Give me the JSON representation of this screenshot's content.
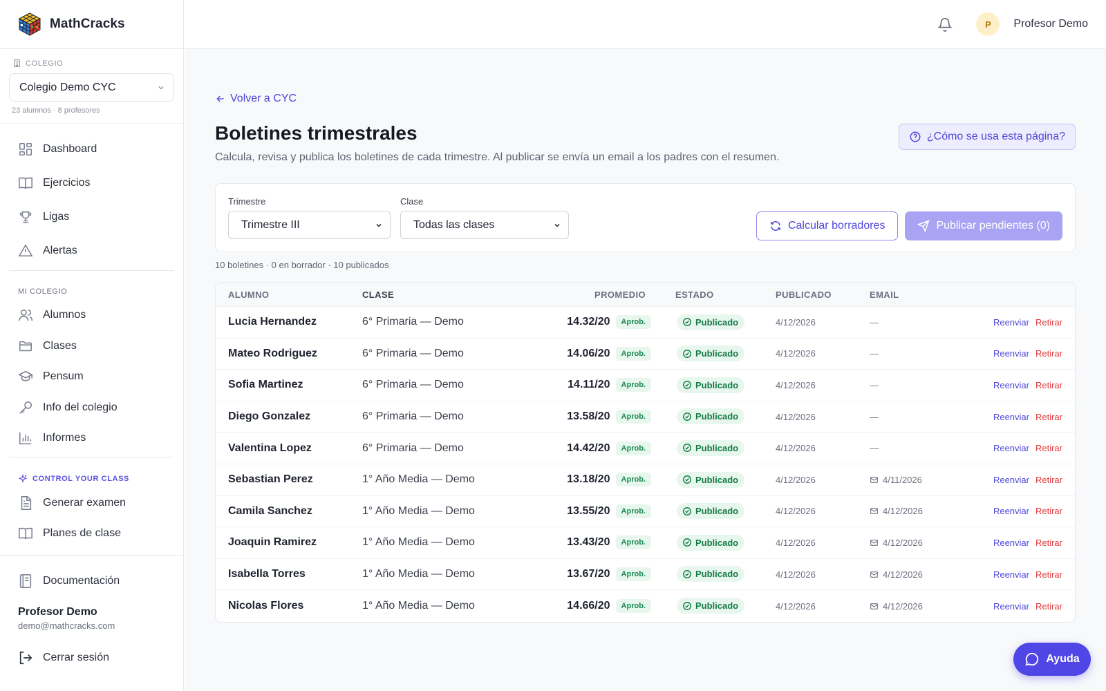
{
  "app": {
    "name": "MathCracks"
  },
  "school": {
    "label": "COLEGIO",
    "selected": "Colegio Demo CYC",
    "meta": "23 alumnos · 8 profesores"
  },
  "nav": {
    "main": [
      {
        "label": "Dashboard",
        "icon": "dashboard-icon"
      },
      {
        "label": "Ejercicios",
        "icon": "book-icon"
      },
      {
        "label": "Ligas",
        "icon": "trophy-icon"
      },
      {
        "label": "Alertas",
        "icon": "alert-icon"
      }
    ],
    "section_mi_colegio": "MI COLEGIO",
    "colegio": [
      {
        "label": "Alumnos",
        "icon": "users-icon"
      },
      {
        "label": "Clases",
        "icon": "folder-icon"
      },
      {
        "label": "Pensum",
        "icon": "graduation-cap-icon"
      },
      {
        "label": "Info del colegio",
        "icon": "key-icon"
      },
      {
        "label": "Informes",
        "icon": "bar-chart-icon"
      }
    ],
    "section_control": "CONTROL YOUR CLASS",
    "control": [
      {
        "label": "Generar examen",
        "icon": "document-icon"
      },
      {
        "label": "Planes de clase",
        "icon": "book-icon"
      }
    ],
    "docs": "Documentación",
    "logout": "Cerrar sesión"
  },
  "user": {
    "name": "Profesor Demo",
    "email": "demo@mathcracks.com",
    "initial": "P"
  },
  "page": {
    "back": "Volver a CYC",
    "title": "Boletines trimestrales",
    "subtitle": "Calcula, revisa y publica los boletines de cada trimestre. Al publicar se envía un email a los padres con el resumen.",
    "help": "¿Cómo se usa esta página?"
  },
  "filters": {
    "trimestre_label": "Trimestre",
    "trimestre_value": "Trimestre III",
    "clase_label": "Clase",
    "clase_value": "Todas las clases",
    "calc_button": "Calcular borradores",
    "publish_button": "Publicar pendientes (0)"
  },
  "summary": "10 boletines · 0 en borrador · 10 publicados",
  "table": {
    "headers": [
      "ALUMNO",
      "CLASE",
      "PROMEDIO",
      "ESTADO",
      "PUBLICADO",
      "EMAIL"
    ],
    "rows": [
      {
        "alumno": "Lucia Hernandez",
        "clase": "6° Primaria — Demo",
        "promedio": "14.32/20",
        "nota": "Aprob.",
        "estado": "Publicado",
        "publicado": "4/12/2026",
        "email": "—",
        "email_sent": false
      },
      {
        "alumno": "Mateo Rodriguez",
        "clase": "6° Primaria — Demo",
        "promedio": "14.06/20",
        "nota": "Aprob.",
        "estado": "Publicado",
        "publicado": "4/12/2026",
        "email": "—",
        "email_sent": false
      },
      {
        "alumno": "Sofia Martinez",
        "clase": "6° Primaria — Demo",
        "promedio": "14.11/20",
        "nota": "Aprob.",
        "estado": "Publicado",
        "publicado": "4/12/2026",
        "email": "—",
        "email_sent": false
      },
      {
        "alumno": "Diego Gonzalez",
        "clase": "6° Primaria — Demo",
        "promedio": "13.58/20",
        "nota": "Aprob.",
        "estado": "Publicado",
        "publicado": "4/12/2026",
        "email": "—",
        "email_sent": false
      },
      {
        "alumno": "Valentina Lopez",
        "clase": "6° Primaria — Demo",
        "promedio": "14.42/20",
        "nota": "Aprob.",
        "estado": "Publicado",
        "publicado": "4/12/2026",
        "email": "—",
        "email_sent": false
      },
      {
        "alumno": "Sebastian Perez",
        "clase": "1° Año Media — Demo",
        "promedio": "13.18/20",
        "nota": "Aprob.",
        "estado": "Publicado",
        "publicado": "4/12/2026",
        "email": "4/11/2026",
        "email_sent": true
      },
      {
        "alumno": "Camila Sanchez",
        "clase": "1° Año Media — Demo",
        "promedio": "13.55/20",
        "nota": "Aprob.",
        "estado": "Publicado",
        "publicado": "4/12/2026",
        "email": "4/12/2026",
        "email_sent": true
      },
      {
        "alumno": "Joaquin Ramirez",
        "clase": "1° Año Media — Demo",
        "promedio": "13.43/20",
        "nota": "Aprob.",
        "estado": "Publicado",
        "publicado": "4/12/2026",
        "email": "4/12/2026",
        "email_sent": true
      },
      {
        "alumno": "Isabella Torres",
        "clase": "1° Año Media — Demo",
        "promedio": "13.67/20",
        "nota": "Aprob.",
        "estado": "Publicado",
        "publicado": "4/12/2026",
        "email": "4/12/2026",
        "email_sent": true
      },
      {
        "alumno": "Nicolas Flores",
        "clase": "1° Año Media — Demo",
        "promedio": "14.66/20",
        "nota": "Aprob.",
        "estado": "Publicado",
        "publicado": "4/12/2026",
        "email": "4/12/2026",
        "email_sent": true
      }
    ],
    "action_resend": "Reenviar",
    "action_withdraw": "Retirar"
  },
  "help_fab": "Ayuda",
  "colors": {
    "accent": "#4f46e5",
    "success": "#167a47",
    "danger": "#e03b3b"
  }
}
